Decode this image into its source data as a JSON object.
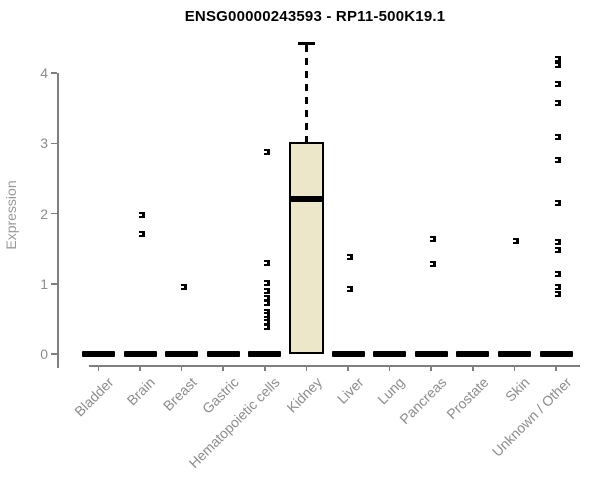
{
  "chart_data": {
    "type": "box",
    "title": "ENSG00000243593 - RP11-500K19.1",
    "ylabel": "Expression",
    "xlabel": "",
    "ylim": [
      0,
      4.5
    ],
    "yticks": [
      "0",
      "1",
      "2",
      "3",
      "4"
    ],
    "grid": false,
    "legend": null,
    "categories": [
      "Bladder",
      "Brain",
      "Breast",
      "Gastric",
      "Hematopoietic cells",
      "Kidney",
      "Liver",
      "Lung",
      "Pancreas",
      "Prostate",
      "Skin",
      "Unknown / Other"
    ],
    "boxes": [
      {
        "category": "Bladder",
        "median": 0,
        "q1": 0,
        "q3": 0,
        "whisker_high": null,
        "outliers": []
      },
      {
        "category": "Brain",
        "median": 0,
        "q1": 0,
        "q3": 0,
        "whisker_high": null,
        "outliers": [
          1.98,
          1.71
        ]
      },
      {
        "category": "Breast",
        "median": 0,
        "q1": 0,
        "q3": 0,
        "whisker_high": null,
        "outliers": [
          0.95
        ]
      },
      {
        "category": "Gastric",
        "median": 0,
        "q1": 0,
        "q3": 0,
        "whisker_high": null,
        "outliers": []
      },
      {
        "category": "Hematopoietic cells",
        "median": 0,
        "q1": 0,
        "q3": 0,
        "whisker_high": null,
        "outliers": [
          2.88,
          1.3,
          1.01,
          0.9,
          0.8,
          0.73,
          0.6,
          0.55,
          0.5,
          0.45,
          0.38
        ]
      },
      {
        "category": "Kidney",
        "median": 2.21,
        "q1": 0,
        "q3": 3.02,
        "whisker_high": 4.43,
        "outliers": []
      },
      {
        "category": "Liver",
        "median": 0,
        "q1": 0,
        "q3": 0,
        "whisker_high": null,
        "outliers": [
          1.38,
          0.92
        ]
      },
      {
        "category": "Lung",
        "median": 0,
        "q1": 0,
        "q3": 0,
        "whisker_high": null,
        "outliers": []
      },
      {
        "category": "Pancreas",
        "median": 0,
        "q1": 0,
        "q3": 0,
        "whisker_high": null,
        "outliers": [
          1.63,
          1.28
        ]
      },
      {
        "category": "Prostate",
        "median": 0,
        "q1": 0,
        "q3": 0,
        "whisker_high": null,
        "outliers": []
      },
      {
        "category": "Skin",
        "median": 0,
        "q1": 0,
        "q3": 0,
        "whisker_high": null,
        "outliers": [
          1.61
        ]
      },
      {
        "category": "Unknown / Other",
        "median": 0,
        "q1": 0,
        "q3": 0,
        "whisker_high": null,
        "outliers": [
          4.2,
          4.12,
          3.85,
          3.58,
          3.09,
          2.76,
          2.15,
          1.59,
          1.48,
          1.14,
          0.95,
          0.85
        ]
      }
    ],
    "colors": {
      "box_fill": "#EDE7CA",
      "box_border": "#000000",
      "median": "#000000",
      "axis": "#7F7F7F",
      "tick_label": "#8C8C8C",
      "title": "#000000",
      "background": "#FFFFFF"
    }
  }
}
